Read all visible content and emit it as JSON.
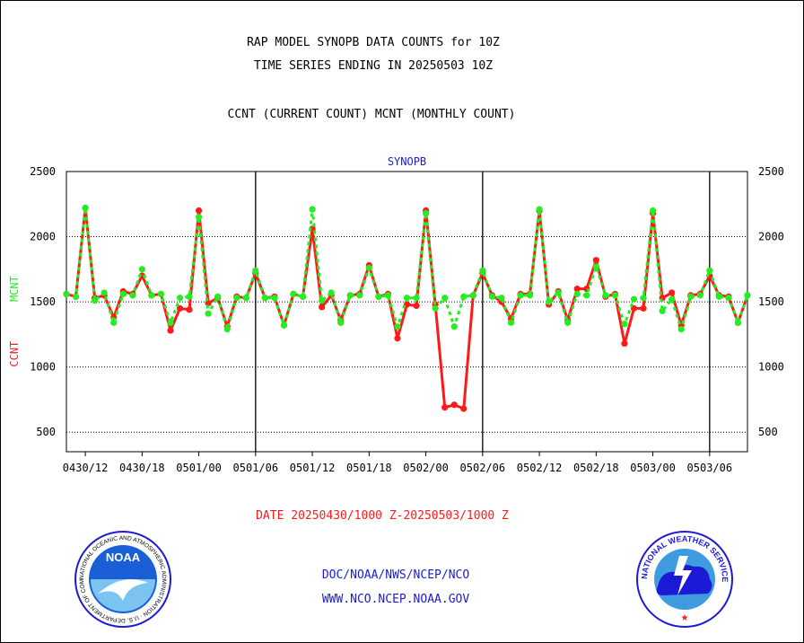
{
  "header": {
    "line1": "RAP MODEL SYNOPB DATA COUNTS for 10Z",
    "line2": "TIME SERIES ENDING IN 20250503 10Z",
    "line3": "CCNT (CURRENT COUNT) MCNT (MONTHLY COUNT)"
  },
  "footer": {
    "date_range": "DATE 20250430/1000 Z-20250503/1000 Z",
    "org": "DOC/NOAA/NWS/NCEP/NCO",
    "website": "WWW.NCO.NCEP.NOAA.GOV"
  },
  "logos": {
    "left": "NOAA",
    "left_ring_text": "NATIONAL OCEANIC AND ATMOSPHERIC ADMINISTRATION · U.S. DEPARTMENT OF COMMERCE",
    "right_ring_text": "NATIONAL WEATHER SERVICE"
  },
  "colors": {
    "ccnt": "#ff1a1a",
    "mcnt": "#22ee22",
    "title": "#1b1bd6",
    "frame": "#000000"
  },
  "chart_data": {
    "type": "line",
    "title": "SYNOPB",
    "ylabel_ccnt": "CCNT",
    "ylabel_mcnt": "MCNT",
    "ylim": [
      350,
      2500
    ],
    "yticks": [
      500,
      1000,
      1500,
      2000,
      2500
    ],
    "grid": true,
    "x_tick_labels": [
      "0430/12",
      "0430/18",
      "0501/00",
      "0501/06",
      "0501/12",
      "0501/18",
      "0502/00",
      "0502/06",
      "0502/12",
      "0502/18",
      "0503/00",
      "0503/06"
    ],
    "x_tick_hours": [
      2,
      8,
      14,
      20,
      26,
      32,
      38,
      44,
      50,
      56,
      62,
      68
    ],
    "day_boundaries": [
      20,
      44,
      68
    ],
    "x_hours": [
      0,
      1,
      2,
      3,
      4,
      5,
      6,
      7,
      8,
      9,
      10,
      11,
      12,
      13,
      14,
      15,
      16,
      17,
      18,
      19,
      20,
      21,
      22,
      23,
      24,
      25,
      26,
      27,
      28,
      29,
      30,
      31,
      32,
      33,
      34,
      35,
      36,
      37,
      38,
      39,
      40,
      41,
      42,
      43,
      44,
      45,
      46,
      47,
      48,
      49,
      50,
      51,
      52,
      53,
      54,
      55,
      56,
      57,
      58,
      59,
      60,
      61,
      62,
      63,
      64,
      65,
      66,
      67,
      68,
      69,
      70,
      71,
      72
    ],
    "series": [
      {
        "name": "CCNT",
        "color": "#ff1a1a",
        "values": [
          1560,
          1540,
          2220,
          1530,
          1550,
          1380,
          1580,
          1560,
          1700,
          1550,
          1560,
          1280,
          1450,
          1440,
          2200,
          1490,
          1530,
          1310,
          1540,
          1530,
          1720,
          1530,
          1540,
          1320,
          1560,
          1540,
          2060,
          1460,
          1550,
          1360,
          1550,
          1560,
          1780,
          1540,
          1560,
          1220,
          1480,
          1470,
          2200,
          1480,
          690,
          710,
          680,
          1550,
          1720,
          1550,
          1500,
          1370,
          1560,
          1560,
          2200,
          1480,
          1580,
          1360,
          1600,
          1600,
          1820,
          1540,
          1560,
          1180,
          1450,
          1450,
          2180,
          1530,
          1570,
          1320,
          1550,
          1560,
          1700,
          1550,
          1540,
          1340,
          1550
        ]
      },
      {
        "name": "MCNT",
        "color": "#22ee22",
        "values": [
          1560,
          1540,
          2220,
          1510,
          1570,
          1340,
          1560,
          1550,
          1750,
          1550,
          1560,
          1340,
          1530,
          1540,
          2150,
          1410,
          1540,
          1290,
          1530,
          1530,
          1740,
          1530,
          1530,
          1320,
          1560,
          1540,
          2210,
          1510,
          1570,
          1340,
          1550,
          1550,
          1760,
          1540,
          1550,
          1310,
          1530,
          1530,
          2180,
          1450,
          1530,
          1310,
          1540,
          1550,
          1740,
          1540,
          1530,
          1340,
          1550,
          1550,
          2210,
          1500,
          1570,
          1340,
          1560,
          1550,
          1770,
          1550,
          1550,
          1330,
          1520,
          1530,
          2200,
          1430,
          1520,
          1290,
          1540,
          1550,
          1740,
          1540,
          1530,
          1340,
          1550
        ]
      }
    ]
  }
}
